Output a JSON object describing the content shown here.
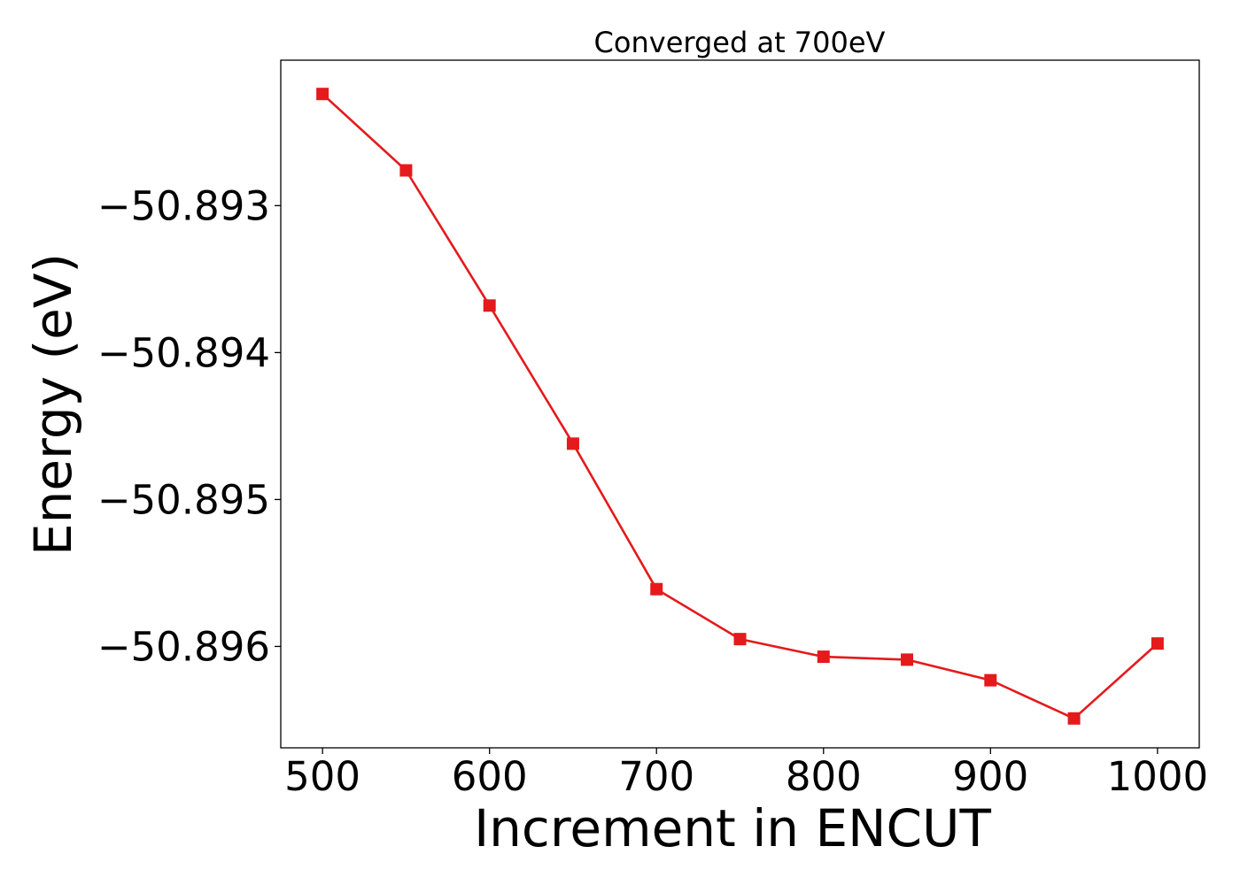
{
  "chart_data": {
    "type": "line",
    "title": "Converged at 700eV",
    "xlabel": "Increment in ENCUT",
    "ylabel": "Energy (eV)",
    "xlim": [
      475,
      1025
    ],
    "ylim": [
      -50.89669,
      -50.89201
    ],
    "x_ticks": [
      500,
      600,
      700,
      800,
      900,
      1000
    ],
    "x_tick_labels": [
      "500",
      "600",
      "700",
      "800",
      "900",
      "1000"
    ],
    "y_ticks": [
      -50.893,
      -50.894,
      -50.895,
      -50.896
    ],
    "y_tick_labels": [
      "−50.893",
      "−50.894",
      "−50.895",
      "−50.896"
    ],
    "grid": false,
    "series": [
      {
        "color": "#e41a1c",
        "marker": "square",
        "x": [
          500,
          550,
          600,
          650,
          700,
          750,
          800,
          850,
          900,
          950,
          1000
        ],
        "y": [
          -50.89224,
          -50.89276,
          -50.89368,
          -50.89462,
          -50.89561,
          -50.89595,
          -50.89607,
          -50.89609,
          -50.89623,
          -50.89649,
          -50.89598
        ]
      }
    ]
  }
}
